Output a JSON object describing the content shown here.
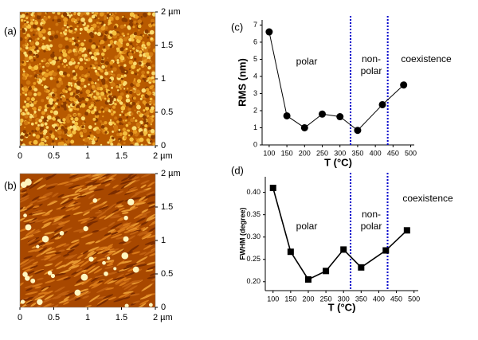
{
  "chart_data": [
    {
      "type": "image",
      "label": "(a)",
      "texture": "grains",
      "xlim": [
        0,
        2
      ],
      "ylim": [
        0,
        2
      ],
      "xticks": [
        0,
        0.5,
        1,
        1.5,
        {
          "value": 2,
          "label": "2 µm"
        }
      ],
      "yticks": [
        0,
        0.5,
        1,
        1.5,
        {
          "value": 2,
          "label": "2 µm"
        }
      ]
    },
    {
      "type": "image",
      "label": "(b)",
      "texture": "streaks",
      "xlim": [
        0,
        2
      ],
      "ylim": [
        0,
        2
      ],
      "xticks": [
        0,
        0.5,
        1,
        1.5,
        {
          "value": 2,
          "label": "2 µm"
        }
      ],
      "yticks": [
        0,
        0.5,
        1,
        1.5,
        {
          "value": 2,
          "label": "2 µm"
        }
      ]
    },
    {
      "type": "line",
      "label": "(c)",
      "xlabel": "T (°C)",
      "ylabel": "RMS (nm)",
      "marker": "circle",
      "color": "#000000",
      "x": [
        100,
        150,
        200,
        250,
        300,
        350,
        420,
        480
      ],
      "values": [
        6.6,
        1.7,
        1.0,
        1.8,
        1.65,
        0.85,
        2.35,
        3.5
      ],
      "xlim": [
        80,
        510
      ],
      "ylim": [
        0,
        7.3
      ],
      "xticks": [
        100,
        150,
        200,
        250,
        300,
        350,
        400,
        450,
        500
      ],
      "yticks": [
        0,
        1,
        2,
        3,
        4,
        5,
        6,
        7
      ],
      "vlines": [
        330,
        435
      ],
      "vline_color": "#0000cc",
      "annotations": [
        [
          "polar"
        ],
        [
          "non-",
          "polar"
        ],
        [
          "coexistence"
        ]
      ]
    },
    {
      "type": "line",
      "label": "(d)",
      "xlabel": "T (°C)",
      "ylabel": "FWHM (degree)",
      "marker": "square",
      "color": "#000000",
      "x": [
        100,
        150,
        200,
        250,
        300,
        350,
        420,
        480
      ],
      "values": [
        0.41,
        0.267,
        0.205,
        0.224,
        0.272,
        0.232,
        0.27,
        0.315
      ],
      "xlim": [
        78,
        512
      ],
      "ylim": [
        0.18,
        0.435
      ],
      "xticks": [
        100,
        150,
        200,
        250,
        300,
        350,
        400,
        450,
        500
      ],
      "yticks": [
        {
          "value": 0.2,
          "label": "0.20"
        },
        {
          "value": 0.25,
          "label": "0.25"
        },
        {
          "value": 0.3,
          "label": "0.30"
        },
        {
          "value": 0.35,
          "label": "0.35"
        },
        {
          "value": 0.4,
          "label": "0.40"
        }
      ],
      "vlines": [
        320,
        425
      ],
      "vline_color": "#0000cc",
      "annotations": [
        [
          "polar"
        ],
        [
          "non-",
          "polar"
        ],
        [
          "coexistence"
        ]
      ]
    }
  ]
}
